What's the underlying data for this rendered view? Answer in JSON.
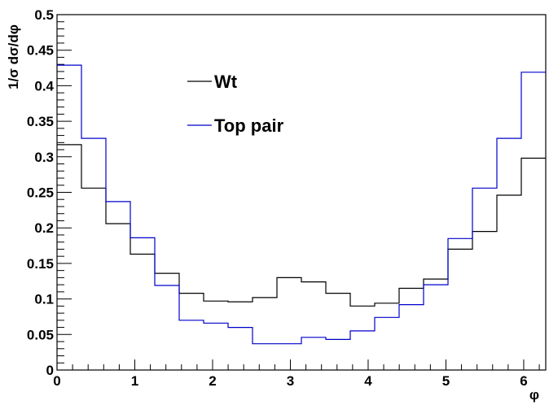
{
  "chart_data": {
    "type": "line",
    "step": true,
    "xlabel": "φ",
    "ylabel": "1/σ dσ/dφ",
    "xlim": [
      0,
      6.2832
    ],
    "ylim": [
      0,
      0.5
    ],
    "x_ticks": [
      "0",
      "1",
      "2",
      "3",
      "4",
      "5",
      "6"
    ],
    "y_ticks": [
      "0",
      "0.05",
      "0.1",
      "0.15",
      "0.2",
      "0.25",
      "0.3",
      "0.35",
      "0.4",
      "0.45",
      "0.5"
    ],
    "grid": false,
    "legend_position": "top-center",
    "bin_edges": [
      0,
      0.3142,
      0.6283,
      0.9425,
      1.2566,
      1.5708,
      1.885,
      2.1991,
      2.5133,
      2.8274,
      3.1416,
      3.4558,
      3.7699,
      4.0841,
      4.3982,
      4.7124,
      5.0265,
      5.3407,
      5.6549,
      5.969,
      6.2832
    ],
    "series": [
      {
        "name": "Wt",
        "color": "#000000",
        "values": [
          0.317,
          0.256,
          0.206,
          0.163,
          0.136,
          0.108,
          0.097,
          0.096,
          0.102,
          0.13,
          0.124,
          0.108,
          0.09,
          0.094,
          0.115,
          0.128,
          0.17,
          0.195,
          0.246,
          0.298
        ]
      },
      {
        "name": "Top pair",
        "color": "#0000cc",
        "values": [
          0.429,
          0.326,
          0.237,
          0.186,
          0.119,
          0.07,
          0.066,
          0.06,
          0.037,
          0.037,
          0.046,
          0.043,
          0.055,
          0.074,
          0.092,
          0.12,
          0.185,
          0.256,
          0.326,
          0.419
        ]
      }
    ]
  }
}
